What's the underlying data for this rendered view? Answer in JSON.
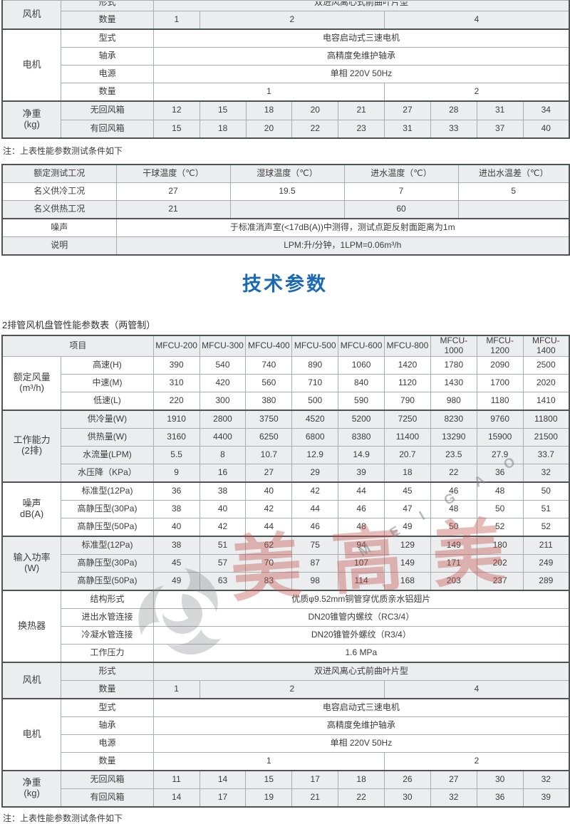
{
  "page": {
    "heading": "技术参数",
    "heading_color": "#1b69b3",
    "caption": "2排管风机盘管性能参数表（两管制）",
    "note_top": "注：上表性能参数测试条件如下",
    "note_bottom": "注：上表性能参数测试条件如下",
    "shade_color": "#ebedee",
    "border_color": "#4e5356"
  },
  "watermark": {
    "brand_chars": "美高美",
    "brand_letters": "M E I G A O",
    "logo": "swirl-logo"
  },
  "tables": {
    "top": {
      "cols": [
        83,
        130,
        65,
        65,
        65,
        65,
        65,
        65,
        65,
        65,
        65
      ],
      "rows": [
        {
          "shade": true,
          "clip": true,
          "cells": [
            {
              "t": "风机",
              "rs": 2,
              "cls": "g",
              "n": "group-label-fan"
            },
            {
              "t": "形式",
              "cls": "clip"
            },
            {
              "t": "双进风离心式前曲叶片型",
              "cs": 9,
              "cls": "clip"
            }
          ]
        },
        {
          "shade": true,
          "cells": [
            {
              "t": "数量"
            },
            {
              "t": "1"
            },
            {
              "t": "2",
              "cs": 4
            },
            {
              "t": "4",
              "cs": 4
            }
          ]
        },
        {
          "thick": true,
          "cells": [
            {
              "t": "电机",
              "rs": 4,
              "cls": "g",
              "n": "group-label-motor"
            },
            {
              "t": "型式"
            },
            {
              "t": "电容启动式三速电机",
              "cs": 9
            }
          ]
        },
        {
          "cells": [
            {
              "t": "轴承"
            },
            {
              "t": "高精度免维护轴承",
              "cs": 9
            }
          ]
        },
        {
          "cells": [
            {
              "t": "电源"
            },
            {
              "t": "单相 220V 50Hz",
              "cs": 9
            }
          ]
        },
        {
          "cells": [
            {
              "t": "数量"
            },
            {
              "t": "1",
              "cs": 5
            },
            {
              "t": "2",
              "cs": 4
            }
          ]
        },
        {
          "thick": true,
          "shade": true,
          "h": 26,
          "cells": [
            {
              "t": "净重\n(kg)",
              "rs": 2,
              "cls": "g",
              "n": "group-label-weight"
            },
            {
              "t": "无回风箱"
            },
            {
              "t": "12"
            },
            {
              "t": "15"
            },
            {
              "t": "18"
            },
            {
              "t": "20"
            },
            {
              "t": "21"
            },
            {
              "t": "27"
            },
            {
              "t": "28"
            },
            {
              "t": "31"
            },
            {
              "t": "34"
            }
          ]
        },
        {
          "shade": true,
          "h": 26,
          "cells": [
            {
              "t": "有回风箱"
            },
            {
              "t": "15"
            },
            {
              "t": "18"
            },
            {
              "t": "20"
            },
            {
              "t": "22"
            },
            {
              "t": "23"
            },
            {
              "t": "31"
            },
            {
              "t": "33"
            },
            {
              "t": "37"
            },
            {
              "t": "40"
            }
          ]
        }
      ]
    },
    "conditions": {
      "cols": [
        160,
        160,
        160,
        160,
        156
      ],
      "rows": [
        {
          "shade": true,
          "cells": [
            {
              "t": "额定测试工况"
            },
            {
              "t": "干球温度（℃）"
            },
            {
              "t": "湿球温度（℃）"
            },
            {
              "t": "进水温度（℃）"
            },
            {
              "t": "进出水温差（℃）"
            }
          ]
        },
        {
          "cells": [
            {
              "t": "名义供冷工况"
            },
            {
              "t": "27"
            },
            {
              "t": "19.5"
            },
            {
              "t": "7"
            },
            {
              "t": "5"
            }
          ]
        },
        {
          "shade": true,
          "cells": [
            {
              "t": "名义供热工况"
            },
            {
              "t": "21"
            },
            {
              "t": ""
            },
            {
              "t": "60"
            },
            {
              "t": ""
            }
          ]
        },
        {
          "thick": true,
          "cells": [
            {
              "t": "噪声"
            },
            {
              "t": "于标准消声室(<17dB(A))中测得，测试点距反射面距离为1m",
              "cs": 4
            }
          ]
        },
        {
          "shade": true,
          "cells": [
            {
              "t": "说明"
            },
            {
              "t": "LPM:升/分钟，1LPM=0.06m³/h",
              "cs": 4
            }
          ]
        }
      ]
    },
    "main": {
      "cols": [
        83,
        130,
        65,
        65,
        65,
        65,
        65,
        65,
        65,
        65,
        65
      ],
      "rows": [
        {
          "shade": true,
          "cells": [
            {
              "t": "项目",
              "cs": 2,
              "n": "column-header-item"
            },
            {
              "t": "MFCU-200"
            },
            {
              "t": "MFCU-300"
            },
            {
              "t": "MFCU-400"
            },
            {
              "t": "MFCU-500"
            },
            {
              "t": "MFCU-600"
            },
            {
              "t": "MFCU-800"
            },
            {
              "t": "MFCU-1000"
            },
            {
              "t": "MFCU-1200"
            },
            {
              "t": "MFCU-1400"
            }
          ]
        },
        {
          "cells": [
            {
              "t": "额定风量\n(m³/h)",
              "rs": 3,
              "cls": "g",
              "n": "group-label-airflow"
            },
            {
              "t": "高速(H)"
            },
            {
              "t": "390"
            },
            {
              "t": "540"
            },
            {
              "t": "740"
            },
            {
              "t": "890"
            },
            {
              "t": "1060"
            },
            {
              "t": "1420"
            },
            {
              "t": "1780"
            },
            {
              "t": "2090"
            },
            {
              "t": "2500"
            }
          ]
        },
        {
          "cells": [
            {
              "t": "中速(M)"
            },
            {
              "t": "310"
            },
            {
              "t": "420"
            },
            {
              "t": "560"
            },
            {
              "t": "710"
            },
            {
              "t": "840"
            },
            {
              "t": "1120"
            },
            {
              "t": "1430"
            },
            {
              "t": "1700"
            },
            {
              "t": "2020"
            }
          ]
        },
        {
          "cells": [
            {
              "t": "低速(L)"
            },
            {
              "t": "220"
            },
            {
              "t": "300"
            },
            {
              "t": "380"
            },
            {
              "t": "500"
            },
            {
              "t": "590"
            },
            {
              "t": "790"
            },
            {
              "t": "980"
            },
            {
              "t": "1180"
            },
            {
              "t": "1410"
            }
          ]
        },
        {
          "thick": true,
          "shade": true,
          "cells": [
            {
              "t": "工作能力\n(2排)",
              "rs": 4,
              "cls": "g",
              "n": "group-label-capacity"
            },
            {
              "t": "供冷量(W)"
            },
            {
              "t": "1910"
            },
            {
              "t": "2800"
            },
            {
              "t": "3750"
            },
            {
              "t": "4520"
            },
            {
              "t": "5200"
            },
            {
              "t": "7250"
            },
            {
              "t": "8230"
            },
            {
              "t": "9760"
            },
            {
              "t": "11800"
            }
          ]
        },
        {
          "shade": true,
          "cells": [
            {
              "t": "供热量(W)"
            },
            {
              "t": "3160"
            },
            {
              "t": "4400"
            },
            {
              "t": "6250"
            },
            {
              "t": "6800"
            },
            {
              "t": "8380"
            },
            {
              "t": "11400"
            },
            {
              "t": "13290"
            },
            {
              "t": "15900"
            },
            {
              "t": "21500"
            }
          ]
        },
        {
          "shade": true,
          "cells": [
            {
              "t": "水流量(LPM)"
            },
            {
              "t": "5.5"
            },
            {
              "t": "8"
            },
            {
              "t": "10.7"
            },
            {
              "t": "12.9"
            },
            {
              "t": "14.9"
            },
            {
              "t": "20.7"
            },
            {
              "t": "23.5"
            },
            {
              "t": "27.9"
            },
            {
              "t": "33.7"
            }
          ]
        },
        {
          "shade": true,
          "cells": [
            {
              "t": "水压降（KPa）"
            },
            {
              "t": "9"
            },
            {
              "t": "16"
            },
            {
              "t": "27"
            },
            {
              "t": "29"
            },
            {
              "t": "39"
            },
            {
              "t": "18"
            },
            {
              "t": "22"
            },
            {
              "t": "36"
            },
            {
              "t": "32"
            }
          ]
        },
        {
          "thick": true,
          "cells": [
            {
              "t": "噪声\ndB(A)",
              "rs": 3,
              "cls": "g",
              "n": "group-label-noise"
            },
            {
              "t": "标准型(12Pa)"
            },
            {
              "t": "36"
            },
            {
              "t": "38"
            },
            {
              "t": "40"
            },
            {
              "t": "42"
            },
            {
              "t": "44"
            },
            {
              "t": "45"
            },
            {
              "t": "46"
            },
            {
              "t": "48"
            },
            {
              "t": "50"
            }
          ]
        },
        {
          "cells": [
            {
              "t": "高静压型(30Pa)"
            },
            {
              "t": "38"
            },
            {
              "t": "40"
            },
            {
              "t": "42"
            },
            {
              "t": "44"
            },
            {
              "t": "46"
            },
            {
              "t": "47"
            },
            {
              "t": "48"
            },
            {
              "t": "50"
            },
            {
              "t": "51"
            }
          ]
        },
        {
          "cells": [
            {
              "t": "高静压型(50Pa)"
            },
            {
              "t": "40"
            },
            {
              "t": "42"
            },
            {
              "t": "44"
            },
            {
              "t": "46"
            },
            {
              "t": "48"
            },
            {
              "t": "49"
            },
            {
              "t": "50"
            },
            {
              "t": "52"
            },
            {
              "t": "52"
            }
          ]
        },
        {
          "thick": true,
          "shade": true,
          "cells": [
            {
              "t": "输入功率\n(W)",
              "rs": 3,
              "cls": "g",
              "n": "group-label-power"
            },
            {
              "t": "标准型(12Pa)"
            },
            {
              "t": "38"
            },
            {
              "t": "51"
            },
            {
              "t": "62"
            },
            {
              "t": "75"
            },
            {
              "t": "94"
            },
            {
              "t": "129"
            },
            {
              "t": "149"
            },
            {
              "t": "180"
            },
            {
              "t": "211"
            }
          ]
        },
        {
          "shade": true,
          "cells": [
            {
              "t": "高静压型(30Pa)"
            },
            {
              "t": "45"
            },
            {
              "t": "57"
            },
            {
              "t": "70"
            },
            {
              "t": "87"
            },
            {
              "t": "107"
            },
            {
              "t": "149"
            },
            {
              "t": "171"
            },
            {
              "t": "202"
            },
            {
              "t": "249"
            }
          ]
        },
        {
          "shade": true,
          "cells": [
            {
              "t": "高静压型(50Pa)"
            },
            {
              "t": "49"
            },
            {
              "t": "63"
            },
            {
              "t": "83"
            },
            {
              "t": "98"
            },
            {
              "t": "114"
            },
            {
              "t": "168"
            },
            {
              "t": "203"
            },
            {
              "t": "237"
            },
            {
              "t": "289"
            }
          ]
        },
        {
          "thick": true,
          "cells": [
            {
              "t": "换热器",
              "rs": 4,
              "cls": "g",
              "n": "group-label-heat-exchanger"
            },
            {
              "t": "结构形式"
            },
            {
              "t": "优质φ9.52mm铜管穿优质亲水铝翅片",
              "cs": 9
            }
          ]
        },
        {
          "cells": [
            {
              "t": "进出水管连接"
            },
            {
              "t": "DN20锥管内螺纹（RC3/4）",
              "cs": 9
            }
          ]
        },
        {
          "cells": [
            {
              "t": "冷凝水管连接"
            },
            {
              "t": "DN20锥管外螺纹（R3/4）",
              "cs": 9
            }
          ]
        },
        {
          "cells": [
            {
              "t": "工作压力"
            },
            {
              "t": "1.6 MPa",
              "cs": 9
            }
          ]
        },
        {
          "thick": true,
          "shade": true,
          "cells": [
            {
              "t": "风机",
              "rs": 2,
              "cls": "g",
              "n": "group-label-fan"
            },
            {
              "t": "形式"
            },
            {
              "t": "双进风离心式前曲叶片型",
              "cs": 9
            }
          ]
        },
        {
          "shade": true,
          "cells": [
            {
              "t": "数量"
            },
            {
              "t": "1"
            },
            {
              "t": "2",
              "cs": 4
            },
            {
              "t": "4",
              "cs": 4
            }
          ]
        },
        {
          "thick": true,
          "cells": [
            {
              "t": "电机",
              "rs": 4,
              "cls": "g",
              "n": "group-label-motor"
            },
            {
              "t": "型式"
            },
            {
              "t": "电容启动式三速电机",
              "cs": 9
            }
          ]
        },
        {
          "cells": [
            {
              "t": "轴承"
            },
            {
              "t": "高精度免维护轴承",
              "cs": 9
            }
          ]
        },
        {
          "cells": [
            {
              "t": "电源"
            },
            {
              "t": "单相 220V 50Hz",
              "cs": 9
            }
          ]
        },
        {
          "cells": [
            {
              "t": "数量"
            },
            {
              "t": "1",
              "cs": 5
            },
            {
              "t": "2",
              "cs": 4
            }
          ]
        },
        {
          "thick": true,
          "shade": true,
          "cells": [
            {
              "t": "净重\n(kg)",
              "rs": 2,
              "cls": "g",
              "n": "group-label-weight"
            },
            {
              "t": "无回风箱"
            },
            {
              "t": "11"
            },
            {
              "t": "14"
            },
            {
              "t": "15"
            },
            {
              "t": "17"
            },
            {
              "t": "18"
            },
            {
              "t": "26"
            },
            {
              "t": "27"
            },
            {
              "t": "30"
            },
            {
              "t": "32"
            }
          ]
        },
        {
          "shade": true,
          "cells": [
            {
              "t": "有回风箱"
            },
            {
              "t": "14"
            },
            {
              "t": "17"
            },
            {
              "t": "19"
            },
            {
              "t": "21"
            },
            {
              "t": "22"
            },
            {
              "t": "30"
            },
            {
              "t": "32"
            },
            {
              "t": "36"
            },
            {
              "t": "39"
            }
          ]
        }
      ]
    }
  }
}
